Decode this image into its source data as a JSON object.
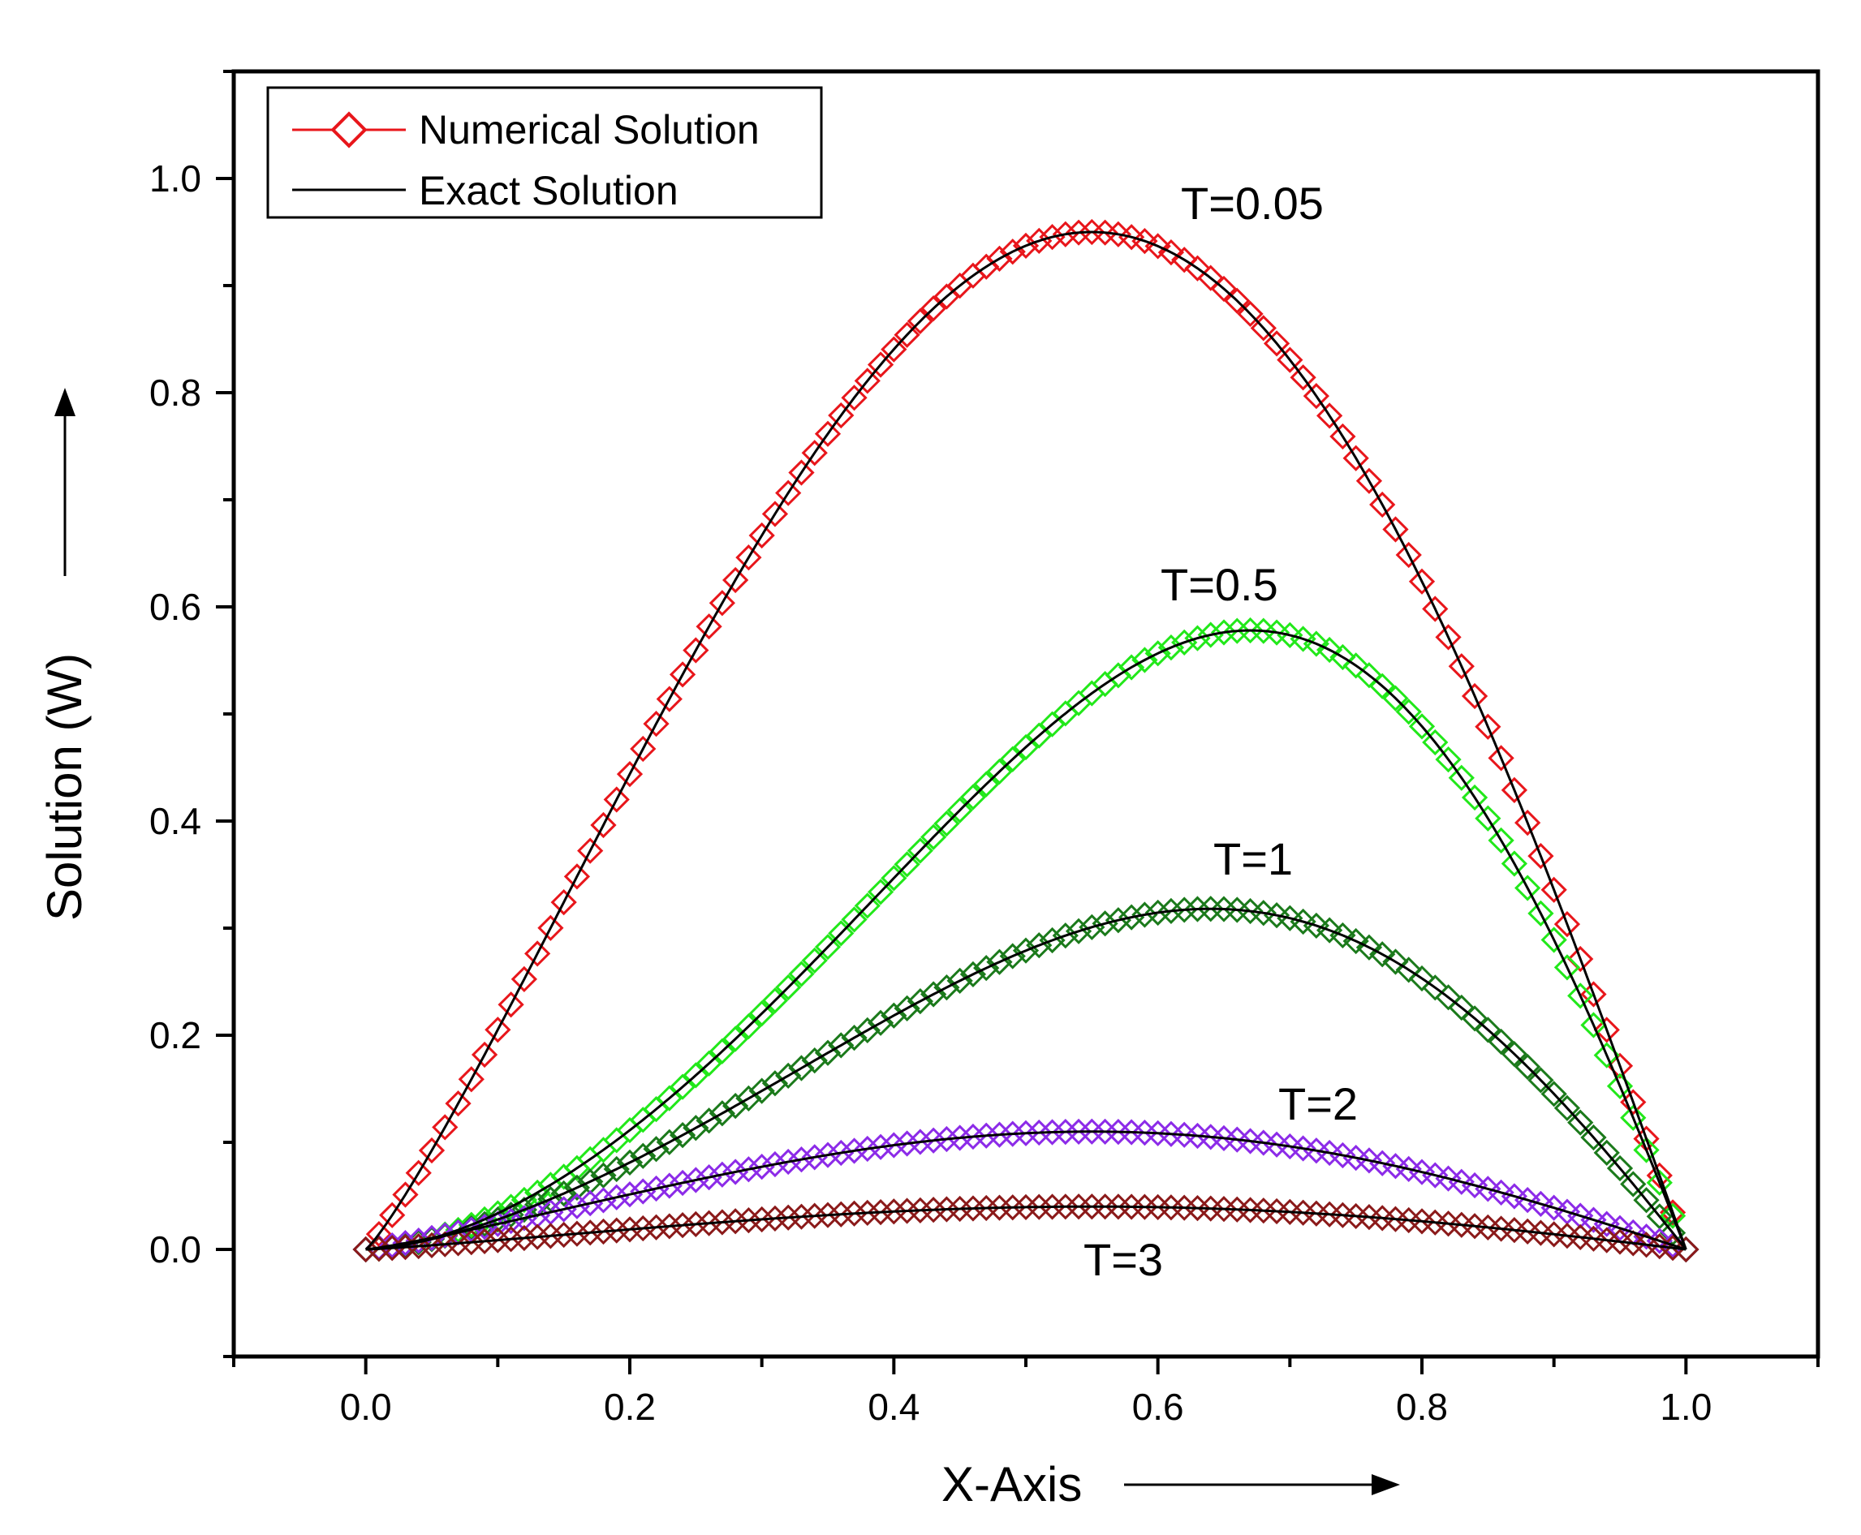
{
  "chart_data": {
    "type": "line",
    "title": "",
    "xlabel": "X-Axis",
    "ylabel": "Solution (W)",
    "xlim": [
      -0.1,
      1.1
    ],
    "ylim": [
      -0.1,
      1.1
    ],
    "xticks": [
      "0.0",
      "0.2",
      "0.4",
      "0.6",
      "0.8",
      "1.0"
    ],
    "yticks": [
      "0.0",
      "0.2",
      "0.4",
      "0.6",
      "0.8",
      "1.0"
    ],
    "xtick_values": [
      0,
      0.2,
      0.4,
      0.6,
      0.8,
      1.0
    ],
    "ytick_values": [
      0,
      0.2,
      0.4,
      0.6,
      0.8,
      1.0
    ],
    "grid": false,
    "legend": {
      "position": "top-left",
      "entries": [
        {
          "label": "Numerical Solution",
          "marker": "diamond",
          "color": "#e8161b"
        },
        {
          "label": "Exact  Solution",
          "marker": "line",
          "color": "#000000"
        }
      ]
    },
    "series": [
      {
        "name": "T=0.05",
        "label": "T=0.05",
        "peak_x": 0.55,
        "peak_y": 0.95,
        "color": "#e8161b",
        "exact_color": "#000000"
      },
      {
        "name": "T=0.5",
        "label": "T=0.5",
        "peak_x": 0.67,
        "peak_y": 0.578,
        "color": "#22e81a",
        "exact_color": "#000000"
      },
      {
        "name": "T=1",
        "label": "T=1",
        "peak_x": 0.64,
        "peak_y": 0.318,
        "color": "#1b7a1b",
        "exact_color": "#000000"
      },
      {
        "name": "T=2",
        "label": "T=2",
        "peak_x": 0.55,
        "peak_y": 0.11,
        "color": "#8c2be8",
        "exact_color": "#000000"
      },
      {
        "name": "T=3",
        "label": "T=3",
        "peak_x": 0.55,
        "peak_y": 0.04,
        "color": "#8b1a1a",
        "exact_color": "#000000"
      }
    ]
  }
}
